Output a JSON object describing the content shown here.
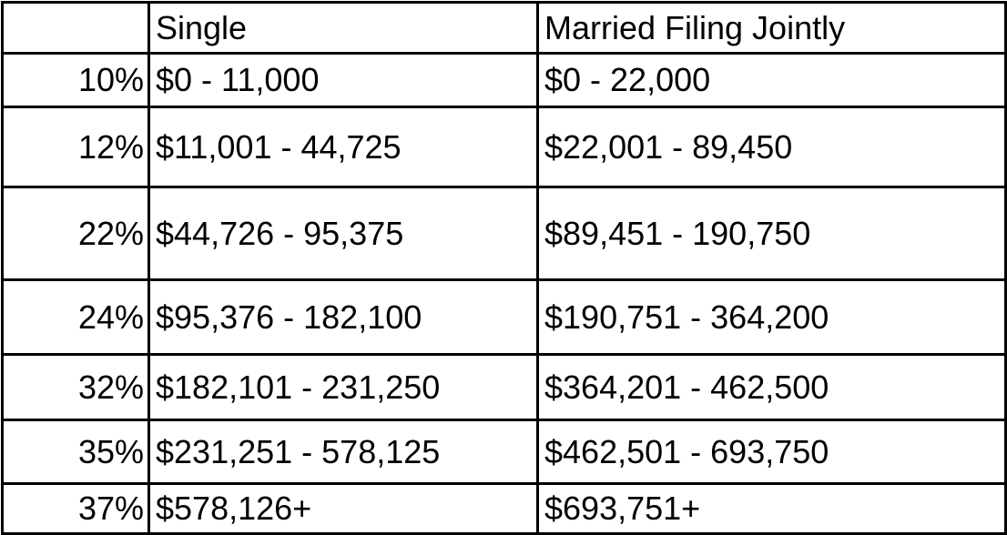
{
  "table": {
    "headers": {
      "rate": "",
      "single": "Single",
      "married": "Married Filing Jointly"
    },
    "rows": [
      {
        "rate": "10%",
        "single": "$0 - 11,000",
        "married": "$0 - 22,000"
      },
      {
        "rate": "12%",
        "single": "$11,001 - 44,725",
        "married": "$22,001 - 89,450"
      },
      {
        "rate": "22%",
        "single": "$44,726 - 95,375",
        "married": "$89,451 - 190,750"
      },
      {
        "rate": "24%",
        "single": "$95,376 - 182,100",
        "married": "$190,751 - 364,200"
      },
      {
        "rate": "32%",
        "single": "$182,101 - 231,250",
        "married": "$364,201 - 462,500"
      },
      {
        "rate": "35%",
        "single": "$231,251 - 578,125",
        "married": "$462,501 - 693,750"
      },
      {
        "rate": "37%",
        "single": "$578,126+",
        "married": "$693,751+"
      }
    ]
  }
}
